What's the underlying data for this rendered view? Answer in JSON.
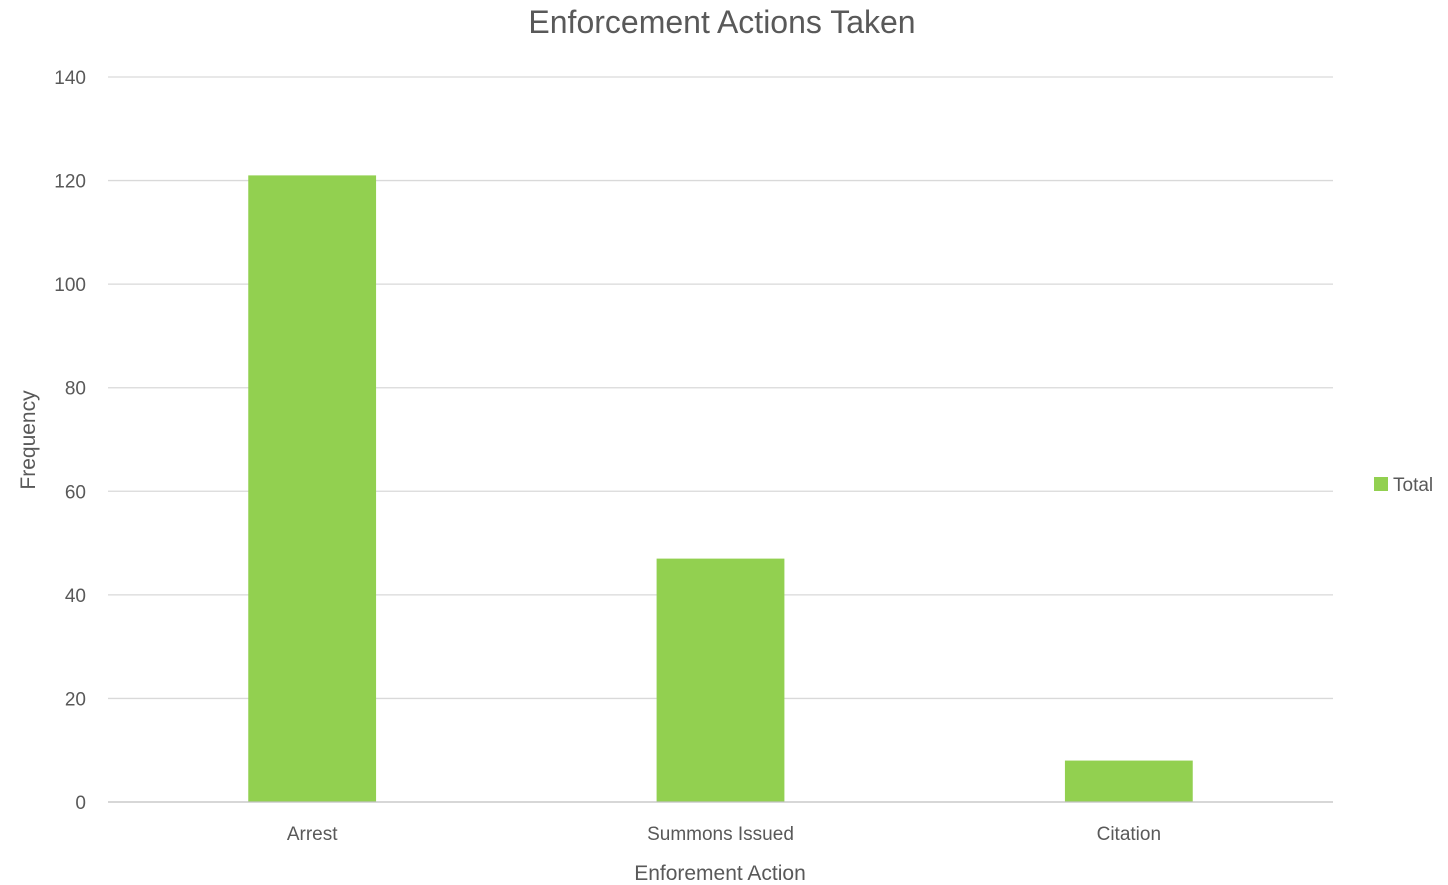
{
  "chart_data": {
    "type": "bar",
    "title": "Enforcement Actions Taken",
    "xlabel": "Enforement Action",
    "ylabel": "Frequency",
    "categories": [
      "Arrest",
      "Summons Issued",
      "Citation"
    ],
    "series": [
      {
        "name": "Total",
        "values": [
          121,
          47,
          8
        ],
        "color": "#92d050"
      }
    ],
    "ylim": [
      0,
      140
    ],
    "yticks": [
      0,
      20,
      40,
      60,
      80,
      100,
      120,
      140
    ],
    "grid": true,
    "legend_position": "right"
  }
}
